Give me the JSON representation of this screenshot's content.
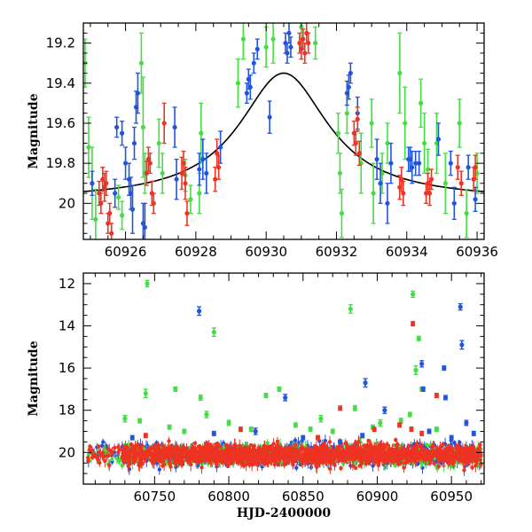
{
  "chart_data": [
    {
      "type": "scatter",
      "title": "",
      "xlabel": "",
      "ylabel": "Magnitude",
      "xlim": [
        60924.8,
        60936.2
      ],
      "ylim": [
        20.18,
        19.1
      ],
      "y_inverted": true,
      "x_ticks_major": [
        60926,
        60928,
        60930,
        60932,
        60934,
        60936
      ],
      "x_tick_labels": [
        "60926",
        "60928",
        "60930",
        "60932",
        "60934",
        "60936"
      ],
      "y_ticks_major": [
        19.2,
        19.4,
        19.6,
        19.8,
        20.0
      ],
      "y_tick_labels": [
        "19.2",
        "19.4",
        "19.6",
        "19.8",
        "20"
      ],
      "model_curve": {
        "type": "lorentzian",
        "center": 60930.5,
        "peak_mag": 19.35,
        "baseline_mag": 19.985,
        "hwhm": 1.55,
        "color": "#000000"
      },
      "series": [
        {
          "name": "green",
          "color": "#44dd44",
          "points": [
            [
              60924.85,
              19.3,
              0.12
            ],
            [
              60924.95,
              19.72,
              0.15
            ],
            [
              60925.05,
              19.9,
              0.18
            ],
            [
              60925.15,
              20.08,
              0.15
            ],
            [
              60925.8,
              19.97,
              0.06
            ],
            [
              60925.9,
              20.06,
              0.07
            ],
            [
              60926.45,
              19.3,
              0.15
            ],
            [
              60926.5,
              19.62,
              0.25
            ],
            [
              60926.55,
              19.85,
              0.1
            ],
            [
              60926.95,
              19.7,
              0.12
            ],
            [
              60927.05,
              19.85,
              0.1
            ],
            [
              60927.7,
              19.86,
              0.08
            ],
            [
              60927.85,
              19.98,
              0.07
            ],
            [
              60928.1,
              19.95,
              0.1
            ],
            [
              60928.15,
              19.65,
              0.15
            ],
            [
              60929.2,
              19.4,
              0.12
            ],
            [
              60929.35,
              19.18,
              0.1
            ],
            [
              60930.0,
              19.22,
              0.1
            ],
            [
              60930.2,
              19.18,
              0.12
            ],
            [
              60931.0,
              19.12,
              0.1
            ],
            [
              60931.4,
              19.2,
              0.08
            ],
            [
              60932.05,
              19.65,
              0.1
            ],
            [
              60932.1,
              19.85,
              0.1
            ],
            [
              60932.15,
              20.05,
              0.12
            ],
            [
              60932.3,
              19.55,
              0.1
            ],
            [
              60932.7,
              19.8,
              0.15
            ],
            [
              60933.0,
              19.6,
              0.12
            ],
            [
              60933.05,
              19.95,
              0.15
            ],
            [
              60933.3,
              19.85,
              0.1
            ],
            [
              60933.45,
              19.7,
              0.1
            ],
            [
              60933.8,
              19.35,
              0.2
            ],
            [
              60933.95,
              19.6,
              0.18
            ],
            [
              60934.4,
              19.5,
              0.12
            ],
            [
              60934.5,
              19.7,
              0.15
            ],
            [
              60934.6,
              19.83,
              0.1
            ],
            [
              60934.85,
              19.7,
              0.15
            ],
            [
              60935.1,
              19.9,
              0.15
            ],
            [
              60935.5,
              19.6,
              0.12
            ],
            [
              60935.7,
              20.05,
              0.12
            ],
            [
              60936.0,
              19.85,
              0.1
            ]
          ]
        },
        {
          "name": "blue",
          "color": "#2255dd",
          "points": [
            [
              60925.05,
              19.9,
              0.06
            ],
            [
              60925.7,
              19.95,
              0.07
            ],
            [
              60925.75,
              19.62,
              0.05
            ],
            [
              60925.9,
              19.65,
              0.06
            ],
            [
              60926.0,
              19.8,
              0.08
            ],
            [
              60926.1,
              19.88,
              0.08
            ],
            [
              60926.15,
              19.95,
              0.08
            ],
            [
              60926.2,
              20.03,
              0.12
            ],
            [
              60926.25,
              19.7,
              0.08
            ],
            [
              60926.3,
              19.52,
              0.08
            ],
            [
              60926.35,
              19.45,
              0.1
            ],
            [
              60926.5,
              20.1,
              0.1
            ],
            [
              60926.55,
              20.12,
              0.12
            ],
            [
              60927.4,
              19.62,
              0.1
            ],
            [
              60927.45,
              19.88,
              0.1
            ],
            [
              60928.1,
              19.83,
              0.08
            ],
            [
              60928.2,
              19.78,
              0.1
            ],
            [
              60928.3,
              19.85,
              0.1
            ],
            [
              60928.7,
              19.72,
              0.08
            ],
            [
              60929.45,
              19.45,
              0.05
            ],
            [
              60929.5,
              19.38,
              0.05
            ],
            [
              60929.55,
              19.42,
              0.06
            ],
            [
              60929.65,
              19.3,
              0.05
            ],
            [
              60929.75,
              19.23,
              0.05
            ],
            [
              60930.1,
              19.57,
              0.08
            ],
            [
              60930.55,
              19.2,
              0.05
            ],
            [
              60930.6,
              19.25,
              0.05
            ],
            [
              60930.65,
              19.15,
              0.05
            ],
            [
              60930.7,
              19.22,
              0.05
            ],
            [
              60932.3,
              19.45,
              0.06
            ],
            [
              60932.35,
              19.42,
              0.06
            ],
            [
              60932.4,
              19.35,
              0.05
            ],
            [
              60932.6,
              19.55,
              0.08
            ],
            [
              60933.15,
              19.78,
              0.1
            ],
            [
              60933.25,
              19.9,
              0.1
            ],
            [
              60933.45,
              20.0,
              0.1
            ],
            [
              60933.55,
              19.8,
              0.1
            ],
            [
              60934.05,
              19.78,
              0.06
            ],
            [
              60934.1,
              19.78,
              0.06
            ],
            [
              60934.15,
              19.82,
              0.08
            ],
            [
              60934.25,
              19.8,
              0.06
            ],
            [
              60934.35,
              19.8,
              0.06
            ],
            [
              60934.9,
              19.68,
              0.08
            ],
            [
              60935.25,
              19.8,
              0.06
            ],
            [
              60935.35,
              20.0,
              0.08
            ],
            [
              60935.75,
              19.82,
              0.06
            ],
            [
              60935.95,
              19.98,
              0.06
            ]
          ]
        },
        {
          "name": "red",
          "color": "#ee3322",
          "points": [
            [
              60925.25,
              19.95,
              0.06
            ],
            [
              60925.3,
              20.0,
              0.05
            ],
            [
              60925.35,
              19.88,
              0.06
            ],
            [
              60925.4,
              19.92,
              0.07
            ],
            [
              60925.45,
              19.9,
              0.06
            ],
            [
              60925.5,
              20.1,
              0.05
            ],
            [
              60925.55,
              20.05,
              0.05
            ],
            [
              60925.6,
              20.15,
              0.05
            ],
            [
              60926.6,
              19.85,
              0.06
            ],
            [
              60926.65,
              19.78,
              0.06
            ],
            [
              60926.7,
              19.8,
              0.05
            ],
            [
              60926.75,
              19.95,
              0.06
            ],
            [
              60926.8,
              20.0,
              0.05
            ],
            [
              60927.1,
              19.6,
              0.1
            ],
            [
              60927.6,
              19.85,
              0.08
            ],
            [
              60927.65,
              19.8,
              0.06
            ],
            [
              60927.7,
              19.9,
              0.08
            ],
            [
              60927.75,
              20.05,
              0.06
            ],
            [
              60928.55,
              19.88,
              0.06
            ],
            [
              60928.6,
              19.75,
              0.07
            ],
            [
              60928.65,
              19.82,
              0.06
            ],
            [
              60930.95,
              19.2,
              0.05
            ],
            [
              60931.0,
              19.23,
              0.05
            ],
            [
              60931.05,
              19.18,
              0.05
            ],
            [
              60931.1,
              19.25,
              0.05
            ],
            [
              60931.15,
              19.15,
              0.05
            ],
            [
              60931.2,
              19.2,
              0.05
            ],
            [
              60932.5,
              19.65,
              0.06
            ],
            [
              60932.55,
              19.7,
              0.06
            ],
            [
              60932.6,
              19.58,
              0.06
            ],
            [
              60932.65,
              19.75,
              0.06
            ],
            [
              60933.8,
              19.92,
              0.06
            ],
            [
              60933.85,
              19.88,
              0.06
            ],
            [
              60933.9,
              19.95,
              0.06
            ],
            [
              60934.55,
              19.95,
              0.05
            ],
            [
              60934.6,
              19.9,
              0.05
            ],
            [
              60934.65,
              19.95,
              0.06
            ],
            [
              60934.7,
              19.88,
              0.05
            ],
            [
              60935.45,
              19.82,
              0.06
            ],
            [
              60935.55,
              19.9,
              0.06
            ],
            [
              60935.9,
              19.88,
              0.06
            ],
            [
              60935.95,
              19.82,
              0.06
            ]
          ]
        }
      ]
    },
    {
      "type": "scatter",
      "title": "",
      "xlabel": "HJD-2400000",
      "ylabel": "Magnitude",
      "xlim": [
        60702,
        60972
      ],
      "ylim": [
        21.5,
        11.5
      ],
      "y_inverted": true,
      "x_ticks_major": [
        60750,
        60800,
        60850,
        60900,
        60950
      ],
      "x_tick_labels": [
        "60750",
        "60800",
        "60850",
        "60900",
        "60950"
      ],
      "y_ticks_major": [
        12,
        14,
        16,
        18,
        20
      ],
      "y_tick_labels": [
        "12",
        "14",
        "16",
        "18",
        "20"
      ],
      "baseline_band": {
        "x_range": [
          60705,
          60970
        ],
        "center_mag": 20.1,
        "spread_mag": 0.5
      },
      "series": [
        {
          "name": "green",
          "color": "#44dd44",
          "points": [
            [
              60730,
              18.4,
              0.15
            ],
            [
              60744,
              17.2,
              0.2
            ],
            [
              60745,
              12.0,
              0.15
            ],
            [
              60764,
              17.0,
              0.1
            ],
            [
              60781,
              17.4,
              0.12
            ],
            [
              60790,
              14.3,
              0.2
            ],
            [
              60825,
              17.3,
              0.1
            ],
            [
              60834,
              17.0,
              0.1
            ],
            [
              60882,
              13.2,
              0.2
            ],
            [
              60885,
              17.9,
              0.12
            ],
            [
              60902,
              18.6,
              0.15
            ],
            [
              60924,
              12.5,
              0.15
            ],
            [
              60926,
              16.1,
              0.2
            ],
            [
              60928,
              14.6,
              0.1
            ],
            [
              60930,
              17.0,
              0.1
            ],
            [
              60740,
              18.5,
              0.1
            ],
            [
              60760,
              18.8,
              0.1
            ],
            [
              60785,
              18.2,
              0.15
            ],
            [
              60800,
              18.6,
              0.12
            ],
            [
              60815,
              18.9,
              0.1
            ],
            [
              60845,
              18.7,
              0.1
            ],
            [
              60862,
              18.4,
              0.15
            ],
            [
              60897,
              18.8,
              0.1
            ],
            [
              60916,
              18.5,
              0.12
            ],
            [
              60922,
              18.2,
              0.1
            ],
            [
              60770,
              19.0,
              0.1
            ],
            [
              60855,
              18.9,
              0.1
            ],
            [
              60870,
              19.0,
              0.1
            ],
            [
              60940,
              18.9,
              0.1
            ]
          ]
        },
        {
          "name": "blue",
          "color": "#2255dd",
          "points": [
            [
              60780,
              13.3,
              0.2
            ],
            [
              60838,
              17.4,
              0.15
            ],
            [
              60892,
              16.7,
              0.2
            ],
            [
              60905,
              18.0,
              0.15
            ],
            [
              60930,
              15.8,
              0.15
            ],
            [
              60931,
              17.0,
              0.1
            ],
            [
              60945,
              16.0,
              0.1
            ],
            [
              60946,
              17.4,
              0.1
            ],
            [
              60956,
              13.1,
              0.15
            ],
            [
              60957,
              14.9,
              0.2
            ],
            [
              60960,
              18.6,
              0.12
            ],
            [
              60735,
              19.3,
              0.1
            ],
            [
              60790,
              19.1,
              0.1
            ],
            [
              60818,
              19.0,
              0.15
            ],
            [
              60850,
              19.3,
              0.1
            ],
            [
              60875,
              19.5,
              0.1
            ],
            [
              60890,
              19.2,
              0.1
            ],
            [
              60935,
              19.0,
              0.1
            ],
            [
              60950,
              19.3,
              0.1
            ],
            [
              60965,
              19.1,
              0.1
            ]
          ]
        },
        {
          "name": "red",
          "color": "#ee3322",
          "points": [
            [
              60924,
              13.9,
              0.1
            ],
            [
              60940,
              17.3,
              0.1
            ],
            [
              60875,
              17.9,
              0.1
            ],
            [
              60898,
              18.9,
              0.1
            ],
            [
              60915,
              18.7,
              0.1
            ],
            [
              60923,
              18.9,
              0.1
            ],
            [
              60744,
              19.2,
              0.1
            ],
            [
              60808,
              18.9,
              0.1
            ],
            [
              60860,
              19.3,
              0.1
            ],
            [
              60930,
              19.1,
              0.1
            ]
          ]
        }
      ]
    }
  ]
}
